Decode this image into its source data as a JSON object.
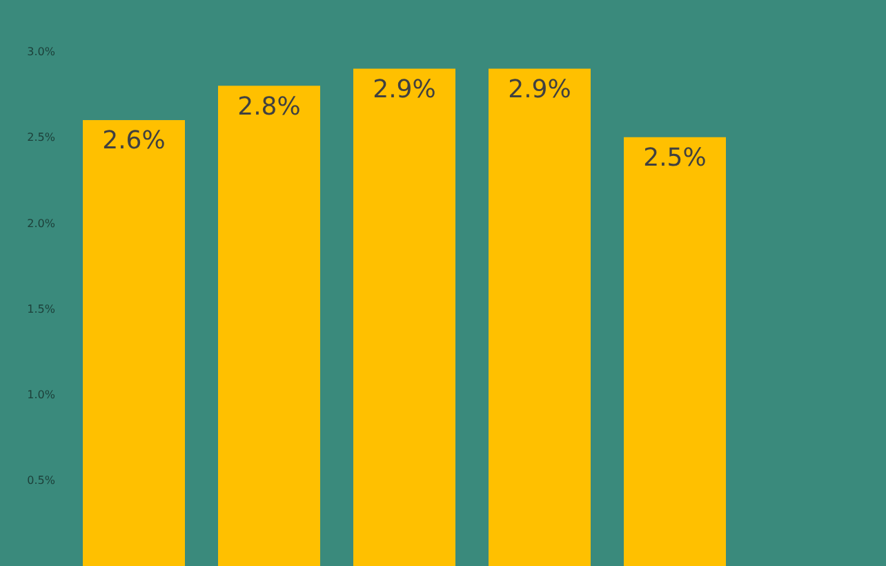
{
  "chart_data": {
    "type": "bar",
    "categories": [
      null,
      null,
      null,
      null,
      null
    ],
    "values": [
      2.6,
      2.8,
      2.9,
      2.9,
      2.5
    ],
    "color": "#ffc000",
    "value_labels": [
      "2.6%",
      "2.8%",
      "2.9%",
      "2.9%",
      "2.5%"
    ],
    "ylim": [
      0,
      3.3
    ],
    "yticks": [
      {
        "value": 0.5,
        "label": "0.5%"
      },
      {
        "value": 1.0,
        "label": "1.0%"
      },
      {
        "value": 1.5,
        "label": "1.5%"
      },
      {
        "value": 2.0,
        "label": "2.0%"
      },
      {
        "value": 2.5,
        "label": "2.5%"
      },
      {
        "value": 3.0,
        "label": "3.0%"
      }
    ],
    "tick_labels": "y",
    "grid": false
  }
}
